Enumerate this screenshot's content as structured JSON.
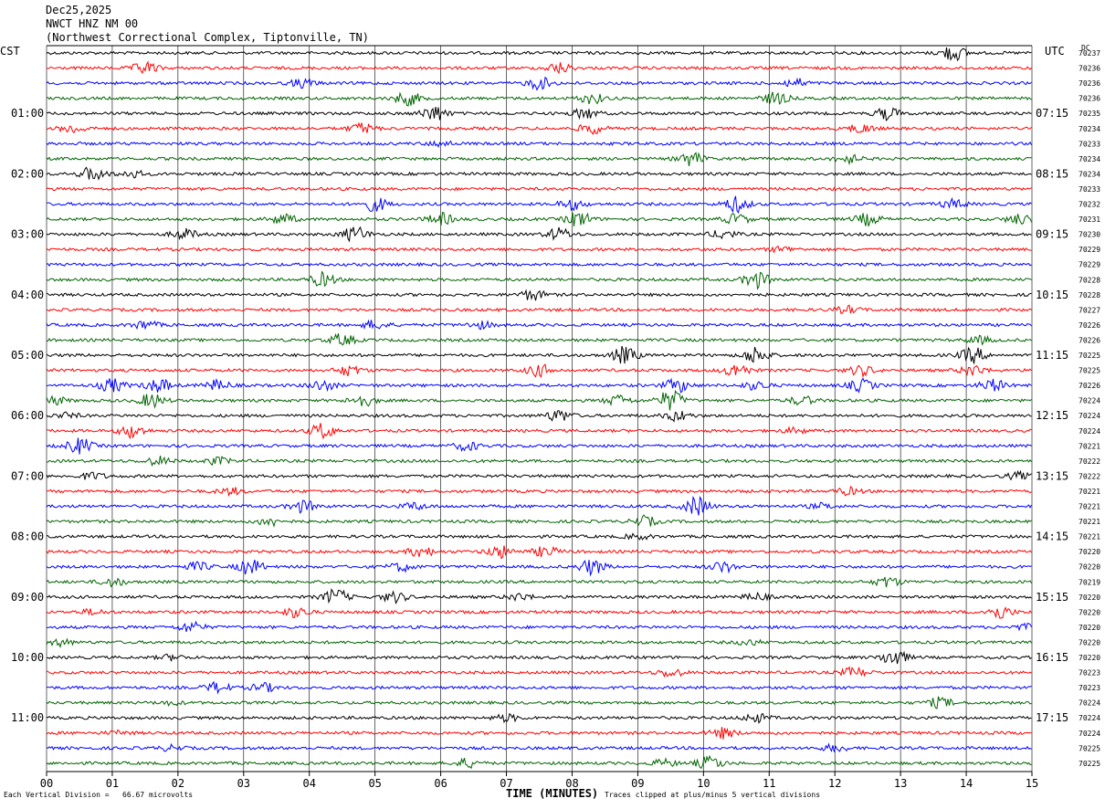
{
  "header": {
    "date": "Dec25,2025",
    "station": "NWCT HNZ NM 00",
    "location": "(Northwest Correctional Complex, Tiptonville, TN)"
  },
  "left_axis_label": "CST",
  "right_axis_label": "UTC",
  "dc_label": "DC",
  "x_axis_label": "TIME (MINUTES)",
  "footer": {
    "scale_note": "Each Vertical Division =   66.67 microvolts",
    "clip_note": "Traces clipped at plus/minus 5 vertical divisions"
  },
  "colors": {
    "trace_cycle": [
      "#000000",
      "#ff0000",
      "#0000ff",
      "#006400"
    ],
    "grid": "#000000",
    "background": "#ffffff"
  },
  "chart_data": {
    "type": "line",
    "title": "NWCT HNZ NM 00",
    "xlabel": "TIME (MINUTES)",
    "ylabel": "",
    "xlim": [
      0,
      15
    ],
    "x_ticks": [
      "00",
      "01",
      "02",
      "03",
      "04",
      "05",
      "06",
      "07",
      "08",
      "09",
      "10",
      "11",
      "12",
      "13",
      "14",
      "15"
    ],
    "trace_count": 48,
    "trace_interval_minutes": 15,
    "left_hour_labels": [
      "01:00",
      "02:00",
      "03:00",
      "04:00",
      "05:00",
      "06:00",
      "07:00",
      "08:00",
      "09:00",
      "10:00",
      "11:00"
    ],
    "right_hour_labels": [
      "07:15",
      "08:15",
      "09:15",
      "10:15",
      "11:15",
      "12:15",
      "13:15",
      "14:15",
      "15:15",
      "16:15",
      "17:15"
    ],
    "hour_label_first_row": 4,
    "hour_label_row_step": 4,
    "dc_offsets": [
      "70237",
      "70236",
      "70236",
      "70236",
      "70235",
      "70234",
      "70233",
      "70234",
      "70234",
      "70233",
      "70232",
      "70231",
      "70230",
      "70229",
      "70229",
      "70228",
      "70228",
      "70227",
      "70226",
      "70226",
      "70225",
      "70225",
      "70226",
      "70224",
      "70224",
      "70224",
      "70221",
      "70222",
      "70222",
      "70221",
      "70221",
      "70221",
      "70221",
      "70220",
      "70220",
      "70219",
      "70220",
      "70220",
      "70220",
      "70220",
      "70220",
      "70223",
      "70223",
      "70224",
      "70224",
      "70224",
      "70225",
      "70225"
    ],
    "bursts": [
      [
        [
          13.8,
          0.9
        ]
      ],
      [
        [
          1.5,
          0.7
        ],
        [
          7.8,
          0.6
        ]
      ],
      [
        [
          3.9,
          0.5
        ],
        [
          7.5,
          0.7
        ],
        [
          11.4,
          0.5
        ]
      ],
      [
        [
          5.5,
          0.8
        ],
        [
          8.3,
          0.6
        ],
        [
          11.1,
          0.7
        ]
      ],
      [
        [
          5.9,
          0.9
        ],
        [
          8.2,
          0.6
        ],
        [
          12.8,
          0.7
        ]
      ],
      [
        [
          0.4,
          0.5
        ],
        [
          4.8,
          0.6
        ],
        [
          8.3,
          0.6
        ],
        [
          12.4,
          0.5
        ]
      ],
      [
        [
          6.0,
          0.3
        ]
      ],
      [
        [
          9.8,
          0.8
        ],
        [
          12.2,
          0.5
        ]
      ],
      [
        [
          0.7,
          0.8
        ],
        [
          1.3,
          0.4
        ]
      ],
      [],
      [
        [
          5.0,
          0.8
        ],
        [
          8.0,
          0.6
        ],
        [
          10.5,
          0.9
        ],
        [
          13.8,
          0.5
        ]
      ],
      [
        [
          3.6,
          0.6
        ],
        [
          6.0,
          0.7
        ],
        [
          8.1,
          0.9
        ],
        [
          10.5,
          0.6
        ],
        [
          12.5,
          0.7
        ],
        [
          14.8,
          0.6
        ]
      ],
      [
        [
          2.1,
          0.6
        ],
        [
          4.7,
          0.9
        ],
        [
          7.8,
          0.7
        ],
        [
          10.3,
          0.5
        ]
      ],
      [
        [
          11.2,
          0.3
        ]
      ],
      [],
      [
        [
          4.2,
          0.8
        ],
        [
          10.8,
          1.0
        ]
      ],
      [
        [
          7.4,
          0.6
        ]
      ],
      [
        [
          12.2,
          0.4
        ]
      ],
      [
        [
          1.5,
          0.5
        ],
        [
          5.0,
          0.5
        ],
        [
          6.6,
          0.4
        ]
      ],
      [
        [
          4.5,
          0.7
        ],
        [
          14.2,
          0.4
        ]
      ],
      [
        [
          8.8,
          1.0
        ],
        [
          10.8,
          1.0
        ],
        [
          14.1,
          0.9
        ]
      ],
      [
        [
          4.6,
          0.6
        ],
        [
          7.5,
          0.7
        ],
        [
          10.5,
          0.8
        ],
        [
          12.4,
          0.6
        ],
        [
          14.1,
          0.6
        ]
      ],
      [
        [
          1.0,
          0.8
        ],
        [
          1.7,
          0.8
        ],
        [
          2.6,
          0.6
        ],
        [
          4.2,
          0.6
        ],
        [
          9.6,
          0.8
        ],
        [
          10.8,
          0.5
        ],
        [
          12.4,
          0.7
        ],
        [
          14.4,
          0.7
        ]
      ],
      [
        [
          0.1,
          0.5
        ],
        [
          1.6,
          0.8
        ],
        [
          4.8,
          0.7
        ],
        [
          8.7,
          0.6
        ],
        [
          9.5,
          1.2
        ],
        [
          11.5,
          0.5
        ]
      ],
      [
        [
          0.3,
          0.3
        ],
        [
          7.8,
          0.7
        ],
        [
          9.6,
          0.6
        ]
      ],
      [
        [
          1.3,
          0.8
        ],
        [
          4.2,
          0.9
        ],
        [
          11.4,
          0.3
        ]
      ],
      [
        [
          0.5,
          0.9
        ],
        [
          6.4,
          0.5
        ]
      ],
      [
        [
          1.7,
          0.5
        ],
        [
          2.6,
          0.4
        ]
      ],
      [
        [
          0.7,
          0.4
        ],
        [
          14.8,
          0.4
        ]
      ],
      [
        [
          2.8,
          0.4
        ],
        [
          12.2,
          0.4
        ]
      ],
      [
        [
          3.9,
          0.7
        ],
        [
          5.6,
          0.4
        ],
        [
          9.9,
          1.1
        ],
        [
          11.8,
          0.3
        ]
      ],
      [
        [
          3.4,
          0.5
        ],
        [
          9.1,
          0.6
        ]
      ],
      [
        [
          9.0,
          0.3
        ]
      ],
      [
        [
          5.7,
          0.6
        ],
        [
          6.9,
          0.7
        ],
        [
          7.6,
          0.6
        ]
      ],
      [
        [
          2.3,
          0.5
        ],
        [
          3.1,
          0.9
        ],
        [
          5.4,
          0.5
        ],
        [
          8.3,
          0.9
        ],
        [
          10.3,
          0.6
        ]
      ],
      [
        [
          1.0,
          0.5
        ],
        [
          12.8,
          0.6
        ]
      ],
      [
        [
          4.4,
          0.9
        ],
        [
          5.3,
          0.6
        ],
        [
          7.2,
          0.4
        ],
        [
          10.8,
          0.4
        ]
      ],
      [
        [
          0.7,
          0.3
        ],
        [
          3.8,
          0.6
        ],
        [
          14.5,
          0.8
        ]
      ],
      [
        [
          2.2,
          0.6
        ],
        [
          14.9,
          0.3
        ]
      ],
      [
        [
          0.2,
          0.4
        ],
        [
          10.7,
          0.3
        ]
      ],
      [
        [
          1.9,
          0.3
        ],
        [
          12.9,
          1.0
        ]
      ],
      [
        [
          9.5,
          0.5
        ],
        [
          12.3,
          0.6
        ]
      ],
      [
        [
          2.6,
          0.6
        ],
        [
          3.3,
          0.5
        ]
      ],
      [
        [
          1.9,
          0.2
        ],
        [
          13.6,
          0.6
        ]
      ],
      [
        [
          7.0,
          0.4
        ],
        [
          10.8,
          0.5
        ]
      ],
      [
        [
          1.1,
          0.2
        ],
        [
          10.3,
          0.6
        ]
      ],
      [
        [
          1.9,
          0.3
        ],
        [
          12.0,
          0.4
        ]
      ],
      [
        [
          6.4,
          0.5
        ],
        [
          9.4,
          0.4
        ],
        [
          10.1,
          0.8
        ]
      ]
    ]
  }
}
